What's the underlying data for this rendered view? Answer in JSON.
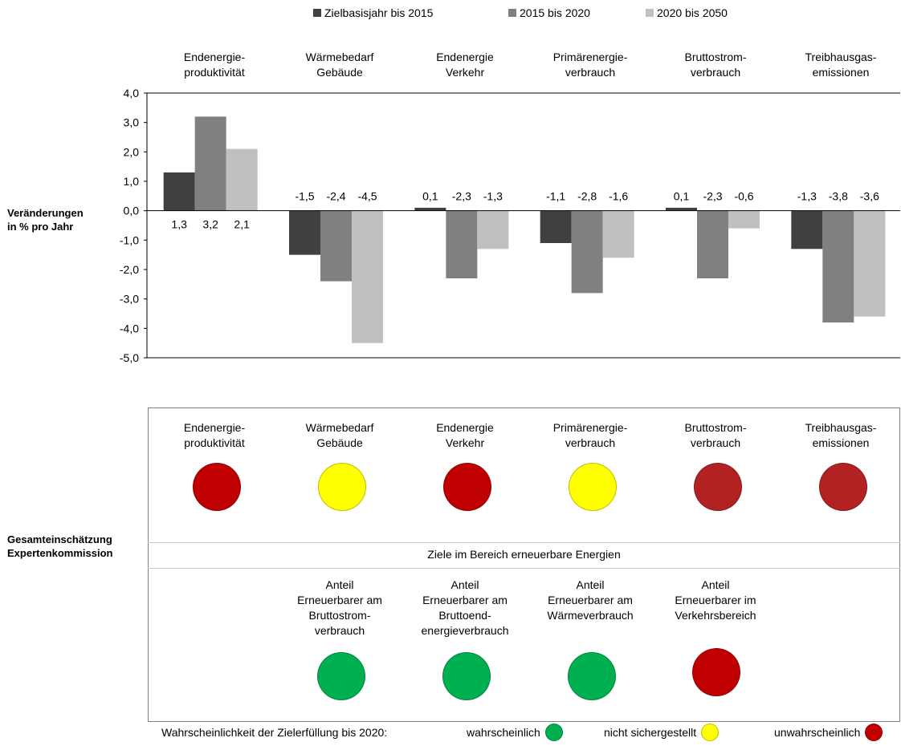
{
  "chart_data": {
    "type": "bar",
    "ylabel": "Veränderungen in % pro Jahr",
    "ylabel_lines": [
      "Veränderungen",
      "in % pro Jahr"
    ],
    "ylim": [
      -5.0,
      4.0
    ],
    "yticks": [
      "4,0",
      "3,0",
      "2,0",
      "1,0",
      "0,0",
      "-1,0",
      "-2,0",
      "-3,0",
      "-4,0",
      "-5,0"
    ],
    "legend_position": "top",
    "categories": [
      [
        "Endenergie-",
        "produktivität"
      ],
      [
        "Wärmebedarf",
        "Gebäude"
      ],
      [
        "Endenergie",
        "Verkehr"
      ],
      [
        "Primärenergie-",
        "verbrauch"
      ],
      [
        "Bruttostrom-",
        "verbrauch"
      ],
      [
        "Treibhausgas-",
        "emissionen"
      ]
    ],
    "series": [
      {
        "name": "Zielbasisjahr bis 2015",
        "color": "#404040",
        "values": [
          1.3,
          -1.5,
          0.1,
          -1.1,
          0.1,
          -1.3
        ],
        "labels": [
          "1,3",
          "-1,5",
          "0,1",
          "-1,1",
          "0,1",
          "-1,3"
        ]
      },
      {
        "name": "2015 bis 2020",
        "color": "#808080",
        "values": [
          3.2,
          -2.4,
          -2.3,
          -2.8,
          -2.3,
          -3.8
        ],
        "labels": [
          "3,2",
          "-2,4",
          "-2,3",
          "-2,8",
          "-2,3",
          "-3,8"
        ]
      },
      {
        "name": "2020 bis 2050",
        "color": "#c0c0c0",
        "values": [
          2.1,
          -4.5,
          -1.3,
          -1.6,
          -0.6,
          -3.6
        ],
        "labels": [
          "2,1",
          "-4,5",
          "-1,3",
          "-1,6",
          "-0,6",
          "-3,6"
        ]
      }
    ]
  },
  "assessment": {
    "row_label": [
      "Gesamteinschätzung",
      "Expertenkommission"
    ],
    "top_items": [
      {
        "lines": [
          "Endenergie-",
          "produktivität"
        ],
        "status": "unwahrscheinlich",
        "color": "#c00000"
      },
      {
        "lines": [
          "Wärmebedarf",
          "Gebäude"
        ],
        "status": "nicht sichergestellt",
        "color": "#ffff00"
      },
      {
        "lines": [
          "Endenergie",
          "Verkehr"
        ],
        "status": "unwahrscheinlich",
        "color": "#c00000"
      },
      {
        "lines": [
          "Primärenergie-",
          "verbrauch"
        ],
        "status": "nicht sichergestellt",
        "color": "#ffff00"
      },
      {
        "lines": [
          "Bruttostrom-",
          "verbrauch"
        ],
        "status": "unwahrscheinlich",
        "color": "#b22222"
      },
      {
        "lines": [
          "Treibhausgas-",
          "emissionen"
        ],
        "status": "unwahrscheinlich",
        "color": "#b22222"
      }
    ],
    "section_title": "Ziele im Bereich erneuerbare Energien",
    "renewable_items": [
      {
        "lines": [
          "Anteil",
          "Erneuerbarer am",
          "Bruttostrom-",
          "verbrauch"
        ],
        "status": "wahrscheinlich",
        "color": "#00b050"
      },
      {
        "lines": [
          "Anteil",
          "Erneuerbarer am",
          "Bruttoend-",
          "energieverbrauch"
        ],
        "status": "wahrscheinlich",
        "color": "#00b050"
      },
      {
        "lines": [
          "Anteil",
          "Erneuerbarer am",
          "Wärmeverbrauch"
        ],
        "status": "wahrscheinlich",
        "color": "#00b050"
      },
      {
        "lines": [
          "Anteil",
          "Erneuerbarer im",
          "Verkehrsbereich"
        ],
        "status": "unwahrscheinlich",
        "color": "#c00000"
      }
    ]
  },
  "footer": {
    "prefix": "Wahrscheinlichkeit der Zielerfüllung bis 2020:",
    "items": [
      {
        "label": "wahrscheinlich",
        "color": "#00b050"
      },
      {
        "label": "nicht sichergestellt",
        "color": "#ffff00"
      },
      {
        "label": "unwahrscheinlich",
        "color": "#c00000"
      }
    ]
  }
}
